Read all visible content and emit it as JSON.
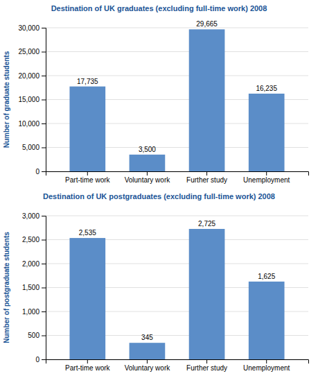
{
  "chart_data": [
    {
      "type": "bar",
      "title": "Destination of UK graduates (excluding full-time work) 2008",
      "ylabel": "Number of graduate students",
      "categories": [
        "Part-time work",
        "Voluntary work",
        "Further study",
        "Unemployment"
      ],
      "values": [
        17735,
        3500,
        29665,
        16235
      ],
      "value_labels": [
        "17,735",
        "3,500",
        "29,665",
        "16,235"
      ],
      "color": "#5b8dc8",
      "ylim": [
        0,
        30000
      ],
      "yticks": [
        0,
        {
          "value": 5000,
          "label": "5,000"
        },
        {
          "value": 10000,
          "label": "10,000"
        },
        {
          "value": 15000,
          "label": "15,000"
        },
        {
          "value": 20000,
          "label": "20,000"
        },
        {
          "value": 25000,
          "label": "25,000"
        },
        {
          "value": 30000,
          "label": "30,000"
        }
      ],
      "grid": true,
      "data_labels": true
    },
    {
      "type": "bar",
      "title": "Destination of UK postgraduates (excluding full-time work) 2008",
      "ylabel": "Number of postgraduate students",
      "categories": [
        "Part-time work",
        "Voluntary work",
        "Further study",
        "Unemployment"
      ],
      "values": [
        2535,
        345,
        2725,
        1625
      ],
      "value_labels": [
        "2,535",
        "345",
        "2,725",
        "1,625"
      ],
      "color": "#5b8dc8",
      "ylim": [
        0,
        3000
      ],
      "yticks": [
        0,
        500,
        {
          "value": 1000,
          "label": "1,000"
        },
        {
          "value": 1500,
          "label": "1,500"
        },
        {
          "value": 2000,
          "label": "2,000"
        },
        {
          "value": 2500,
          "label": "2,500"
        },
        {
          "value": 3000,
          "label": "3,000"
        }
      ],
      "grid": true,
      "data_labels": true
    }
  ]
}
